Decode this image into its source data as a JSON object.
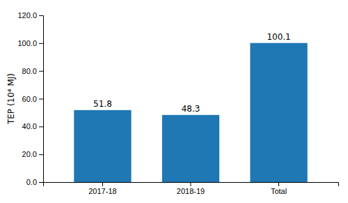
{
  "chart_data": {
    "type": "bar",
    "categories": [
      "2017-18",
      "2018-19",
      "Total"
    ],
    "values": [
      51.8,
      48.3,
      100.1
    ],
    "ylabel": "TEP (10⁴ MJ)",
    "ylim": [
      0,
      120.0
    ],
    "yticks": [
      {
        "value": 0.0,
        "label": "0.0"
      },
      {
        "value": 20.0,
        "label": "20.0"
      },
      {
        "value": 40.0,
        "label": "40.0"
      },
      {
        "value": 60.0,
        "label": "60.0"
      },
      {
        "value": 80.0,
        "label": "80.0"
      },
      {
        "value": 100.0,
        "label": "100.0"
      },
      {
        "value": 120.0,
        "label": "120.0"
      }
    ],
    "data_labels": true,
    "grid": false
  }
}
